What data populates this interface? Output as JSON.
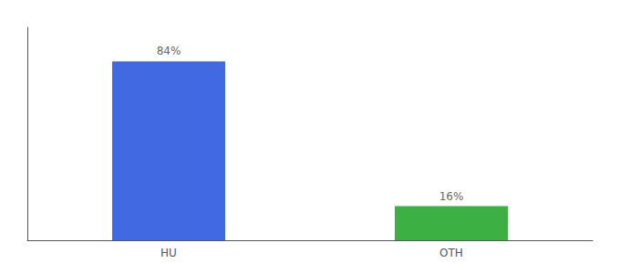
{
  "chart_data": {
    "type": "bar",
    "categories": [
      "HU",
      "OTH"
    ],
    "values": [
      84,
      16
    ],
    "value_labels": [
      "84%",
      "16%"
    ],
    "data_labels": true,
    "colors": [
      "#4169e1",
      "#3cb043"
    ],
    "ylim": [
      0,
      100
    ],
    "grid": false,
    "tick_labels": "x"
  }
}
